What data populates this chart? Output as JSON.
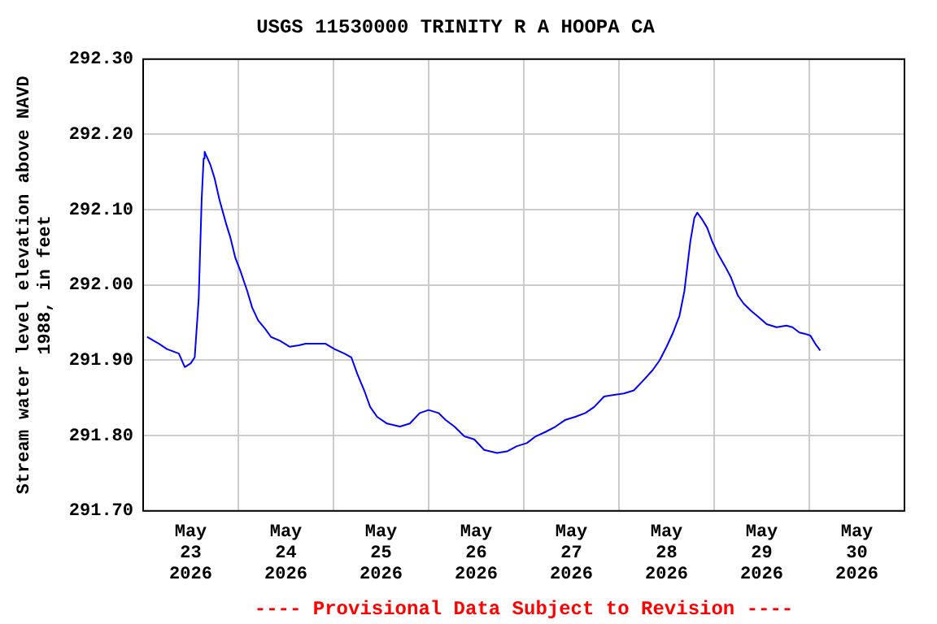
{
  "chart_data": {
    "type": "line",
    "title": "USGS 11530000 TRINITY R A HOOPA CA",
    "ylabel": "Stream water level elevation above NAVD 1988, in feet",
    "annotations": [
      "---- Provisional Data Subject to Revision ----"
    ],
    "xlim": [
      "2026-05-23T00:00",
      "2026-05-31T00:00"
    ],
    "xticks": [
      {
        "value": "2026-05-23T00:00",
        "label": null
      },
      {
        "value": "2026-05-23T12:00",
        "label": "May 23 2026"
      },
      {
        "value": "2026-05-24T00:00",
        "label": null
      },
      {
        "value": "2026-05-24T12:00",
        "label": "May 24 2026"
      },
      {
        "value": "2026-05-25T00:00",
        "label": null
      },
      {
        "value": "2026-05-25T12:00",
        "label": "May 25 2026"
      },
      {
        "value": "2026-05-26T00:00",
        "label": null
      },
      {
        "value": "2026-05-26T12:00",
        "label": "May 26 2026"
      },
      {
        "value": "2026-05-27T00:00",
        "label": null
      },
      {
        "value": "2026-05-27T12:00",
        "label": "May 27 2026"
      },
      {
        "value": "2026-05-28T00:00",
        "label": null
      },
      {
        "value": "2026-05-28T12:00",
        "label": "May 28 2026"
      },
      {
        "value": "2026-05-29T00:00",
        "label": null
      },
      {
        "value": "2026-05-29T12:00",
        "label": "May 29 2026"
      },
      {
        "value": "2026-05-30T00:00",
        "label": null
      },
      {
        "value": "2026-05-30T12:00",
        "label": "May 30 2026"
      },
      {
        "value": "2026-05-31T00:00",
        "label": null
      }
    ],
    "ylim": [
      291.7,
      292.3
    ],
    "yticks": [
      {
        "value": 291.7,
        "label": "291.70"
      },
      {
        "value": 291.8,
        "label": "291.80"
      },
      {
        "value": 291.9,
        "label": "291.90"
      },
      {
        "value": 292.0,
        "label": "292.00"
      },
      {
        "value": 292.1,
        "label": "292.10"
      },
      {
        "value": 292.2,
        "label": "292.20"
      },
      {
        "value": 292.3,
        "label": "292.30"
      }
    ],
    "grid": true,
    "legend": false,
    "series": [
      {
        "color": "#0000ff",
        "x": [
          "2026-05-23T01:00",
          "2026-05-23T04:00",
          "2026-05-23T06:00",
          "2026-05-23T09:00",
          "2026-05-23T10:30",
          "2026-05-23T12:00",
          "2026-05-23T13:00",
          "2026-05-23T14:00",
          "2026-05-23T14:45",
          "2026-05-23T15:15",
          "2026-05-23T15:30",
          "2026-05-23T17:00",
          "2026-05-23T18:00",
          "2026-05-23T19:15",
          "2026-05-23T21:00",
          "2026-05-23T22:00",
          "2026-05-23T23:15",
          "2026-05-24T00:30",
          "2026-05-24T02:15",
          "2026-05-24T03:30",
          "2026-05-24T05:00",
          "2026-05-24T06:45",
          "2026-05-24T08:15",
          "2026-05-24T10:30",
          "2026-05-24T13:00",
          "2026-05-24T15:15",
          "2026-05-24T17:00",
          "2026-05-24T19:30",
          "2026-05-24T22:00",
          "2026-05-25T00:15",
          "2026-05-25T02:45",
          "2026-05-25T04:30",
          "2026-05-25T06:00",
          "2026-05-25T07:45",
          "2026-05-25T09:15",
          "2026-05-25T11:00",
          "2026-05-25T13:30",
          "2026-05-25T16:45",
          "2026-05-25T19:15",
          "2026-05-25T21:45",
          "2026-05-26T00:00",
          "2026-05-26T02:30",
          "2026-05-26T04:15",
          "2026-05-26T06:30",
          "2026-05-26T09:00",
          "2026-05-26T11:30",
          "2026-05-26T14:00",
          "2026-05-26T17:15",
          "2026-05-26T19:45",
          "2026-05-26T22:15",
          "2026-05-27T00:45",
          "2026-05-27T03:00",
          "2026-05-27T05:30",
          "2026-05-27T08:00",
          "2026-05-27T10:30",
          "2026-05-27T13:00",
          "2026-05-27T15:30",
          "2026-05-27T17:45",
          "2026-05-27T20:15",
          "2026-05-27T22:45",
          "2026-05-28T01:15",
          "2026-05-28T03:45",
          "2026-05-28T06:15",
          "2026-05-28T08:30",
          "2026-05-28T10:15",
          "2026-05-28T12:00",
          "2026-05-28T13:30",
          "2026-05-28T15:15",
          "2026-05-28T16:30",
          "2026-05-28T17:15",
          "2026-05-28T18:00",
          "2026-05-28T19:00",
          "2026-05-28T19:45",
          "2026-05-28T21:00",
          "2026-05-28T22:15",
          "2026-05-28T23:30",
          "2026-05-29T01:00",
          "2026-05-29T02:45",
          "2026-05-29T04:15",
          "2026-05-29T06:00",
          "2026-05-29T07:30",
          "2026-05-29T09:15",
          "2026-05-29T11:45",
          "2026-05-29T13:15",
          "2026-05-29T15:45",
          "2026-05-29T18:15",
          "2026-05-29T19:45",
          "2026-05-29T21:30",
          "2026-05-29T23:00",
          "2026-05-30T00:15",
          "2026-05-30T01:30",
          "2026-05-30T02:45"
        ],
        "values": [
          291.931,
          291.922,
          291.915,
          291.909,
          291.891,
          291.896,
          291.904,
          291.981,
          292.113,
          292.168,
          292.177,
          292.159,
          292.142,
          292.113,
          292.08,
          292.063,
          292.036,
          292.019,
          291.992,
          291.97,
          291.953,
          291.942,
          291.931,
          291.926,
          291.918,
          291.92,
          291.922,
          291.922,
          291.922,
          291.915,
          291.909,
          291.904,
          291.882,
          291.86,
          291.838,
          291.825,
          291.816,
          291.812,
          291.816,
          291.83,
          291.834,
          291.83,
          291.821,
          291.812,
          291.799,
          291.795,
          291.781,
          291.777,
          291.779,
          291.786,
          291.79,
          291.799,
          291.805,
          291.812,
          291.821,
          291.825,
          291.83,
          291.838,
          291.852,
          291.854,
          291.856,
          291.86,
          291.874,
          291.887,
          291.9,
          291.918,
          291.935,
          291.959,
          291.992,
          292.025,
          292.058,
          292.089,
          292.096,
          292.087,
          292.076,
          292.058,
          292.041,
          292.025,
          292.01,
          291.986,
          291.975,
          291.966,
          291.955,
          291.948,
          291.944,
          291.946,
          291.944,
          291.937,
          291.935,
          291.933,
          291.922,
          291.913
        ]
      }
    ]
  }
}
